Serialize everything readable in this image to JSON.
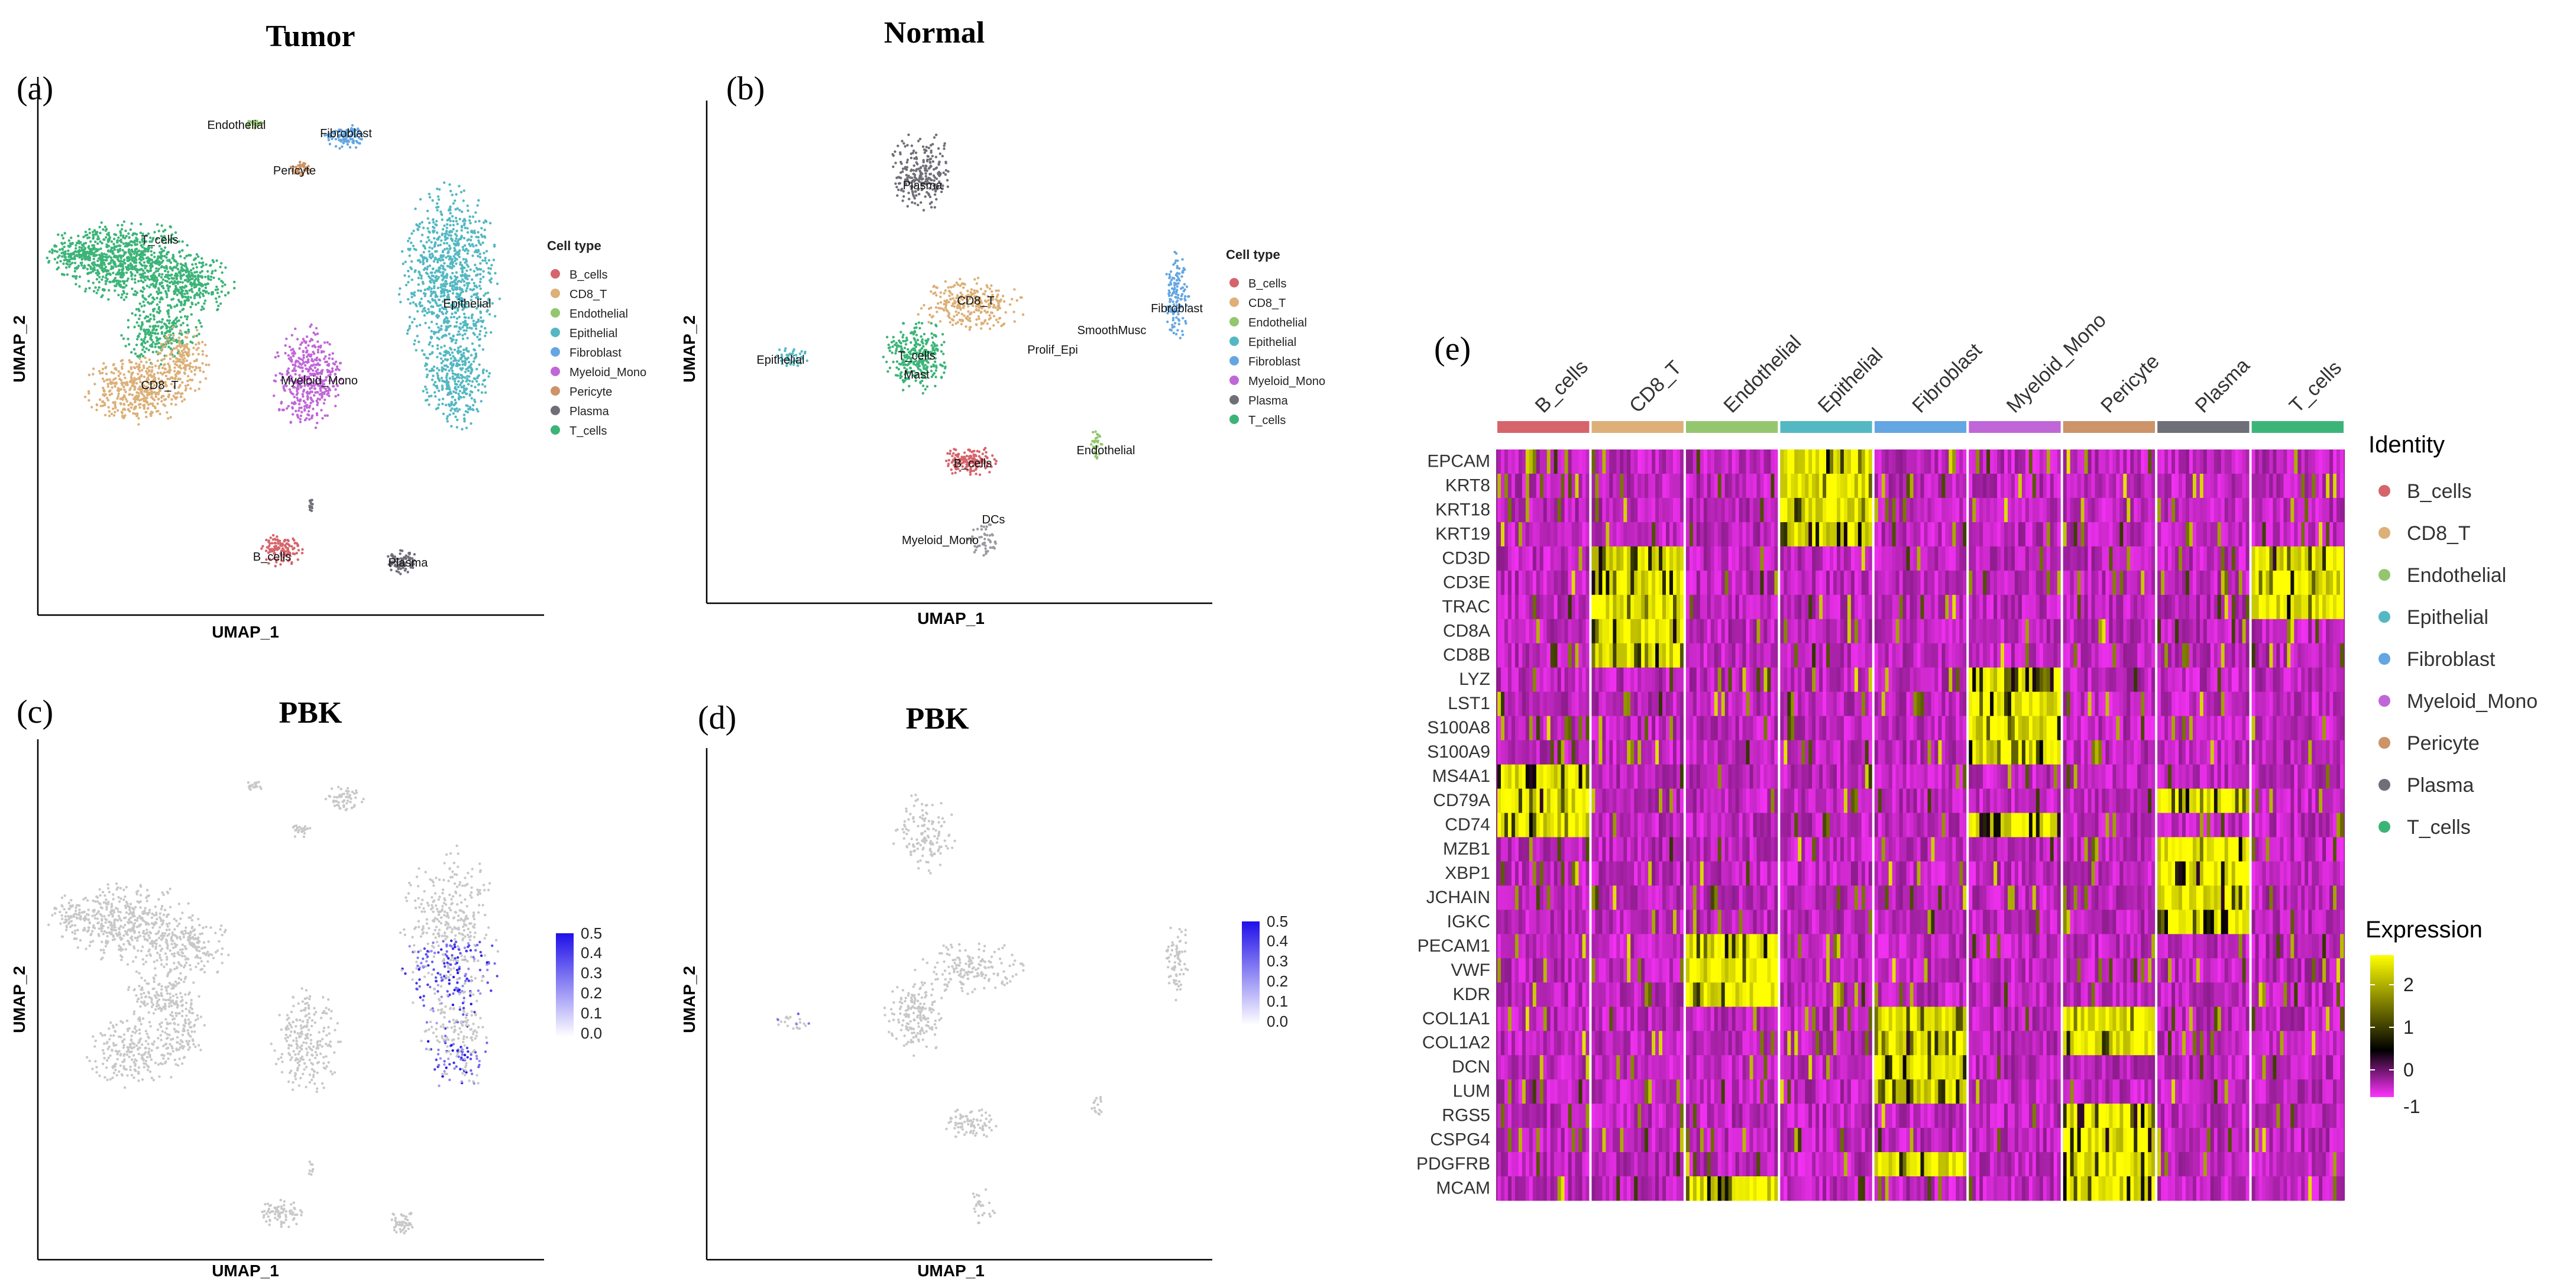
{
  "colors": {
    "B_cells": "#d6646c",
    "CD8_T": "#dcb078",
    "Endothelial": "#94c670",
    "Epithelial": "#54b8c2",
    "Fibroblast": "#64a6e2",
    "Myeloid_Mono": "#c067d8",
    "Pericyte": "#cc9468",
    "Plasma": "#6f6f78",
    "T_cells": "#3cb478",
    "DCs": "#9a9aa2",
    "Prolif_Epi": "#a8a8b0",
    "SmoothMusc": "#a8a8b0",
    "Mast": "#a8a8b0",
    "heat_low": "#ff33ff",
    "heat_mid": "#000000",
    "heat_high": "#ffff00",
    "heat_base": "#8b1d8b",
    "pbk_low": "#ffffff",
    "pbk_high": "#1f10e8",
    "gray_cell": "#c8c8c8"
  },
  "panels": {
    "a": {
      "letter": "(a)",
      "title": "Tumor",
      "xlabel": "UMAP_1",
      "ylabel": "UMAP_2",
      "legend_title": "Cell type",
      "legend_items": [
        "B_cells",
        "CD8_T",
        "Endothelial",
        "Epithelial",
        "Fibroblast",
        "Myeloid_Mono",
        "Pericyte",
        "Plasma",
        "T_cells"
      ],
      "cluster_labels": [
        "Endothelial",
        "Fibroblast",
        "Pericyte",
        "T_cells",
        "Epithelial",
        "CD8_T",
        "Myeloid_Mono",
        "B_cells",
        "Plasma"
      ]
    },
    "b": {
      "letter": "(b)",
      "title": "Normal",
      "xlabel": "UMAP_1",
      "ylabel": "UMAP_2",
      "legend_title": "Cell type",
      "legend_items": [
        "B_cells",
        "CD8_T",
        "Endothelial",
        "Epithelial",
        "Fibroblast",
        "Myeloid_Mono",
        "Plasma",
        "T_cells"
      ],
      "cluster_labels": [
        "Plasma",
        "CD8_T",
        "Fibroblast",
        "SmoothMusc",
        "Prolif_Epi",
        "T_cells",
        "Mast",
        "Epithelial",
        "Endothelial",
        "B_cells",
        "DCs",
        "Myeloid_Mono"
      ]
    },
    "c": {
      "letter": "(c)",
      "title": "PBK",
      "xlabel": "UMAP_1",
      "ylabel": "UMAP_2",
      "scale_ticks": [
        "0.5",
        "0.4",
        "0.3",
        "0.2",
        "0.1",
        "0.0"
      ]
    },
    "d": {
      "letter": "(d)",
      "title": "PBK",
      "xlabel": "UMAP_1",
      "ylabel": "UMAP_2",
      "scale_ticks": [
        "0.5",
        "0.4",
        "0.3",
        "0.2",
        "0.1",
        "0.0"
      ]
    },
    "e": {
      "letter": "(e)",
      "identity_title": "Identity",
      "expression_title": "Expression",
      "expression_ticks": [
        "2",
        "1",
        "0",
        "-1"
      ]
    }
  },
  "chart_data": [
    {
      "id": "umap-tumor",
      "type": "scatter",
      "title": "Tumor",
      "xlabel": "UMAP_1",
      "ylabel": "UMAP_2",
      "legend": "right",
      "series": [
        "B_cells",
        "CD8_T",
        "Endothelial",
        "Epithelial",
        "Fibroblast",
        "Myeloid_Mono",
        "Pericyte",
        "Plasma",
        "T_cells"
      ]
    },
    {
      "id": "umap-normal",
      "type": "scatter",
      "title": "Normal",
      "xlabel": "UMAP_1",
      "ylabel": "UMAP_2",
      "legend": "right",
      "series": [
        "B_cells",
        "CD8_T",
        "Endothelial",
        "Epithelial",
        "Fibroblast",
        "Myeloid_Mono",
        "Plasma",
        "T_cells"
      ]
    },
    {
      "id": "pbk-tumor",
      "type": "scatter",
      "title": "PBK",
      "xlabel": "UMAP_1",
      "ylabel": "UMAP_2",
      "color_scale_range": [
        0,
        0.5
      ]
    },
    {
      "id": "pbk-normal",
      "type": "scatter",
      "title": "PBK",
      "xlabel": "UMAP_1",
      "ylabel": "UMAP_2",
      "color_scale_range": [
        0,
        0.5
      ]
    },
    {
      "id": "marker-heatmap",
      "type": "heatmap",
      "columns": [
        "B_cells",
        "CD8_T",
        "Endothelial",
        "Epithelial",
        "Fibroblast",
        "Myeloid_Mono",
        "Pericyte",
        "Plasma",
        "T_cells"
      ],
      "rows": [
        "EPCAM",
        "KRT8",
        "KRT18",
        "KRT19",
        "CD3D",
        "CD3E",
        "TRAC",
        "CD8A",
        "CD8B",
        "LYZ",
        "LST1",
        "S100A8",
        "S100A9",
        "MS4A1",
        "CD79A",
        "CD74",
        "MZB1",
        "XBP1",
        "JCHAIN",
        "IGKC",
        "PECAM1",
        "VWF",
        "KDR",
        "COL1A1",
        "COL1A2",
        "DCN",
        "LUM",
        "RGS5",
        "CSPG4",
        "PDGFRB",
        "MCAM"
      ],
      "high_expression": {
        "EPCAM": [
          "Epithelial"
        ],
        "KRT8": [
          "Epithelial"
        ],
        "KRT18": [
          "Epithelial"
        ],
        "KRT19": [
          "Epithelial"
        ],
        "CD3D": [
          "CD8_T",
          "T_cells"
        ],
        "CD3E": [
          "CD8_T",
          "T_cells"
        ],
        "TRAC": [
          "CD8_T",
          "T_cells"
        ],
        "CD8A": [
          "CD8_T"
        ],
        "CD8B": [
          "CD8_T"
        ],
        "LYZ": [
          "Myeloid_Mono"
        ],
        "LST1": [
          "Myeloid_Mono"
        ],
        "S100A8": [
          "Myeloid_Mono"
        ],
        "S100A9": [
          "Myeloid_Mono"
        ],
        "MS4A1": [
          "B_cells"
        ],
        "CD79A": [
          "B_cells",
          "Plasma"
        ],
        "CD74": [
          "B_cells",
          "Myeloid_Mono"
        ],
        "MZB1": [
          "Plasma"
        ],
        "XBP1": [
          "Plasma"
        ],
        "JCHAIN": [
          "Plasma"
        ],
        "IGKC": [
          "Plasma"
        ],
        "PECAM1": [
          "Endothelial"
        ],
        "VWF": [
          "Endothelial"
        ],
        "KDR": [
          "Endothelial"
        ],
        "COL1A1": [
          "Fibroblast",
          "Pericyte"
        ],
        "COL1A2": [
          "Fibroblast",
          "Pericyte"
        ],
        "DCN": [
          "Fibroblast"
        ],
        "LUM": [
          "Fibroblast"
        ],
        "RGS5": [
          "Pericyte"
        ],
        "CSPG4": [
          "Pericyte"
        ],
        "PDGFRB": [
          "Pericyte",
          "Fibroblast"
        ],
        "MCAM": [
          "Pericyte",
          "Endothelial"
        ]
      },
      "color_scale": {
        "min": -1,
        "max": 2,
        "ticks": [
          2,
          1,
          0,
          -1
        ]
      }
    }
  ]
}
